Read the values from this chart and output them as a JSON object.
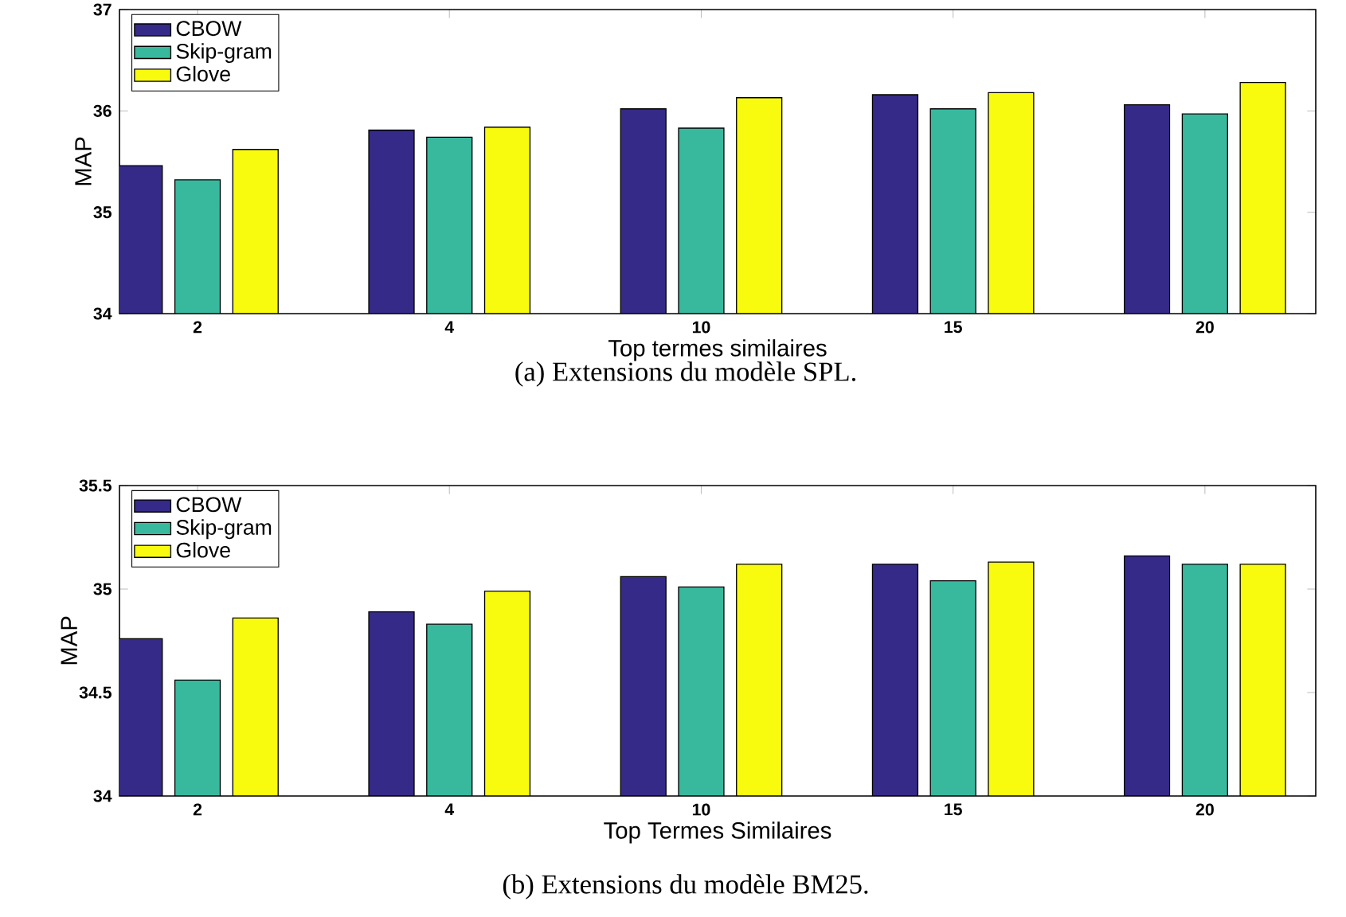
{
  "chart_data": [
    {
      "type": "bar",
      "xlabel": "Top termes similaires",
      "ylabel": "MAP",
      "categories": [
        "2",
        "4",
        "10",
        "15",
        "20"
      ],
      "ylim": [
        34,
        37
      ],
      "yticks": [
        34,
        35,
        36,
        37
      ],
      "grid": false,
      "legend": "top left",
      "series": [
        {
          "name": "CBOW",
          "color": "#352a87",
          "values": [
            35.46,
            35.81,
            36.02,
            36.16,
            36.06
          ]
        },
        {
          "name": "Skip-gram",
          "color": "#38b99e",
          "values": [
            35.32,
            35.74,
            35.83,
            36.02,
            35.97
          ]
        },
        {
          "name": "Glove",
          "color": "#f9fb0e",
          "values": [
            35.62,
            35.84,
            36.13,
            36.18,
            36.28
          ]
        }
      ],
      "annotations": [
        "(a) Extensions du modèle SPL."
      ]
    },
    {
      "type": "bar",
      "xlabel": "Top Termes Similaires",
      "ylabel": "MAP",
      "categories": [
        "2",
        "4",
        "10",
        "15",
        "20"
      ],
      "ylim": [
        34,
        35.5
      ],
      "yticks": [
        34,
        34.5,
        35,
        35.5
      ],
      "grid": false,
      "legend": "top left",
      "series": [
        {
          "name": "CBOW",
          "color": "#352a87",
          "values": [
            34.76,
            34.89,
            35.06,
            35.12,
            35.16
          ]
        },
        {
          "name": "Skip-gram",
          "color": "#38b99e",
          "values": [
            34.56,
            34.83,
            35.01,
            35.04,
            35.12
          ]
        },
        {
          "name": "Glove",
          "color": "#f9fb0e",
          "values": [
            34.86,
            34.99,
            35.12,
            35.13,
            35.12
          ]
        }
      ],
      "annotations": [
        "(b) Extensions du modèle BM25."
      ]
    }
  ]
}
